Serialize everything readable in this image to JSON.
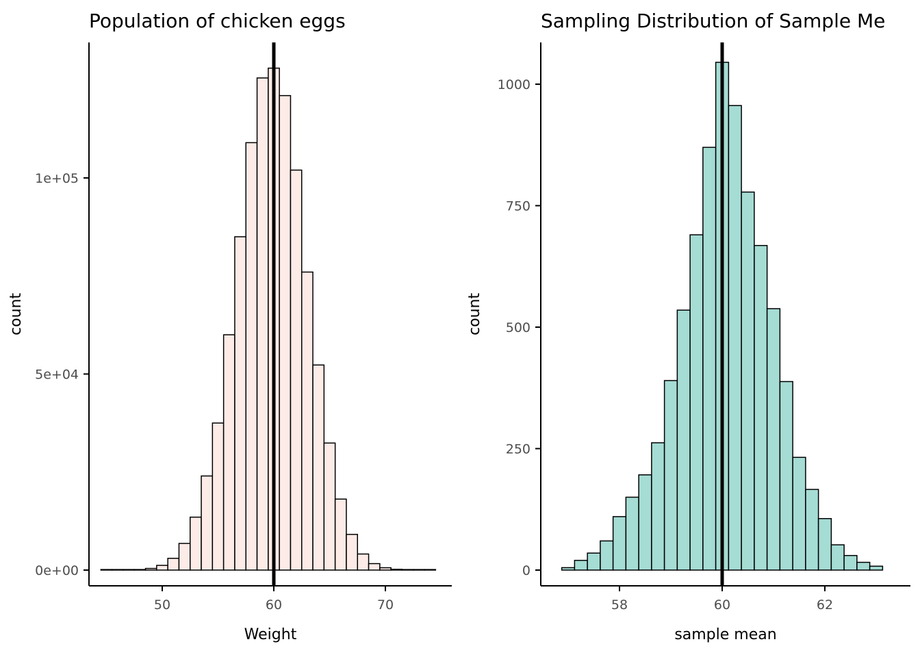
{
  "page": {
    "background": "#ffffff"
  },
  "chart_data": [
    {
      "type": "bar",
      "subtype": "histogram",
      "title": "Population of chicken eggs",
      "xlabel": "Weight",
      "ylabel": "count",
      "legend": "none",
      "grid": false,
      "bar_fill": "#fcebe7",
      "bar_stroke": "#000000",
      "mean_line_x": 60,
      "mean_line_color": "#000000",
      "bin_width": 1,
      "xlim": [
        43.4,
        75.9
      ],
      "ylim": [
        0,
        134600
      ],
      "x_ticks": [
        50,
        60,
        70
      ],
      "x_tick_labels": [
        "50",
        "60",
        "70"
      ],
      "y_ticks": [
        0,
        50000,
        100000
      ],
      "y_tick_labels": [
        "0e+00",
        "5e+04",
        "1e+05"
      ],
      "x": [
        45,
        46,
        47,
        48,
        49,
        50,
        51,
        52,
        53,
        54,
        55,
        56,
        57,
        58,
        59,
        60,
        61,
        62,
        63,
        64,
        65,
        66,
        67,
        68,
        69,
        70,
        71,
        72,
        73,
        74
      ],
      "counts": [
        2,
        8,
        35,
        130,
        420,
        1200,
        3000,
        6800,
        13500,
        24000,
        37500,
        60000,
        85000,
        109000,
        125500,
        128000,
        121000,
        102000,
        76000,
        52300,
        32400,
        18100,
        9100,
        4100,
        1650,
        600,
        200,
        60,
        18,
        5
      ]
    },
    {
      "type": "bar",
      "subtype": "histogram",
      "title": "Sampling Distribution of Sample Me",
      "xlabel": "sample mean",
      "ylabel": "count",
      "legend": "none",
      "grid": false,
      "bar_fill": "#a5dcd4",
      "bar_stroke": "#000000",
      "mean_line_x": 60,
      "mean_line_color": "#000000",
      "bin_width": 0.25,
      "xlim": [
        56.5,
        63.7
      ],
      "ylim": [
        0,
        1086
      ],
      "x_ticks": [
        58,
        60,
        62
      ],
      "x_tick_labels": [
        "58",
        "60",
        "62"
      ],
      "y_ticks": [
        0,
        250,
        500,
        750,
        1000
      ],
      "y_tick_labels": [
        "0",
        "250",
        "500",
        "750",
        "1000"
      ],
      "x": [
        57.0,
        57.25,
        57.5,
        57.75,
        58.0,
        58.25,
        58.5,
        58.75,
        59.0,
        59.25,
        59.5,
        59.75,
        60.0,
        60.25,
        60.5,
        60.75,
        61.0,
        61.25,
        61.5,
        61.75,
        62.0,
        62.25,
        62.5,
        62.75,
        63.0
      ],
      "counts": [
        5,
        20,
        35,
        60,
        110,
        150,
        196,
        262,
        390,
        535,
        690,
        870,
        1045,
        956,
        778,
        668,
        538,
        388,
        232,
        166,
        106,
        52,
        30,
        16,
        8
      ]
    }
  ]
}
